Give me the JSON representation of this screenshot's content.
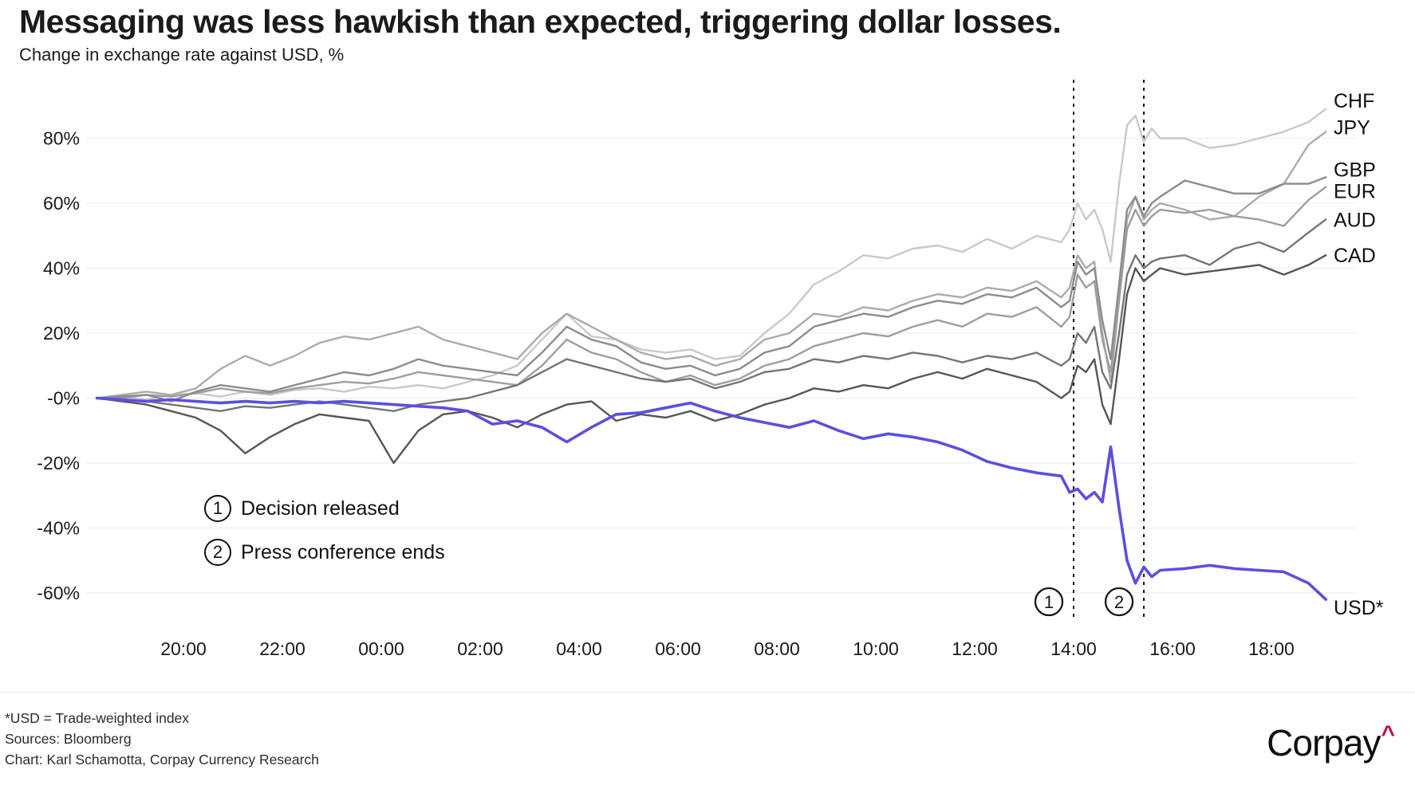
{
  "header": {
    "title": "Messaging was less hawkish than expected, triggering dollar losses.",
    "subtitle": "Change in exchange rate against USD, %"
  },
  "annotations": {
    "legend": [
      {
        "num": "1",
        "label": "Decision released"
      },
      {
        "num": "2",
        "label": "Press conference ends"
      }
    ],
    "events": [
      {
        "num": "1",
        "t": 38.0
      },
      {
        "num": "2",
        "t": 39.42
      }
    ]
  },
  "footer": {
    "note": "*USD = Trade-weighted index",
    "sources": "Sources: Bloomberg",
    "credit": "Chart: Karl Schamotta, Corpay Currency Research",
    "logo_text": "Corpay",
    "logo_caret": "^",
    "logo_caret_color": "#c01048"
  },
  "chart_data": {
    "type": "line",
    "title": "Messaging was less hawkish than expected, triggering dollar losses.",
    "subtitle": "Change in exchange rate against USD, %",
    "ylabel": "Change in exchange rate against USD, %",
    "grid": true,
    "legend_position": "right-line-ends",
    "x_axis": {
      "unit": "time",
      "range_hours": [
        18.15,
        43.15
      ],
      "ticks": [
        {
          "t": 20,
          "label": "20:00"
        },
        {
          "t": 22,
          "label": "22:00"
        },
        {
          "t": 24,
          "label": "00:00"
        },
        {
          "t": 26,
          "label": "02:00"
        },
        {
          "t": 28,
          "label": "04:00"
        },
        {
          "t": 30,
          "label": "06:00"
        },
        {
          "t": 32,
          "label": "08:00"
        },
        {
          "t": 34,
          "label": "10:00"
        },
        {
          "t": 36,
          "label": "12:00"
        },
        {
          "t": 38,
          "label": "14:00"
        },
        {
          "t": 40,
          "label": "16:00"
        },
        {
          "t": 42,
          "label": "18:00"
        }
      ]
    },
    "y_axis": {
      "unit": "%",
      "range": [
        -70,
        95
      ],
      "ticks": [
        {
          "v": 80,
          "label": "80%"
        },
        {
          "v": 60,
          "label": "60%"
        },
        {
          "v": 40,
          "label": "40%"
        },
        {
          "v": 20,
          "label": "20%"
        },
        {
          "v": 0,
          "label": "-0%"
        },
        {
          "v": -20,
          "label": "-20%"
        },
        {
          "v": -40,
          "label": "-40%"
        },
        {
          "v": -60,
          "label": "-60%"
        }
      ]
    },
    "x_hours": [
      18.25,
      18.75,
      19.25,
      19.75,
      20.25,
      20.75,
      21.25,
      21.75,
      22.25,
      22.75,
      23.25,
      23.75,
      24.25,
      24.75,
      25.25,
      25.75,
      26.25,
      26.75,
      27.25,
      27.75,
      28.25,
      28.75,
      29.25,
      29.75,
      30.25,
      30.75,
      31.25,
      31.75,
      32.25,
      32.75,
      33.25,
      33.75,
      34.25,
      34.75,
      35.25,
      35.75,
      36.25,
      36.75,
      37.25,
      37.75,
      37.92,
      38.08,
      38.25,
      38.42,
      38.58,
      38.75,
      38.92,
      39.08,
      39.25,
      39.42,
      39.58,
      39.75,
      40.25,
      40.75,
      41.25,
      41.75,
      42.25,
      42.75,
      43.1
    ],
    "series": [
      {
        "name": "CHF",
        "color": "#c9c9c9",
        "width": 2.4,
        "values": [
          0,
          0.5,
          -0.5,
          1,
          1.5,
          0.5,
          2,
          1,
          2.5,
          3,
          2,
          3.5,
          3,
          4,
          3,
          5,
          7,
          10,
          18,
          26,
          19,
          18,
          15,
          14,
          15,
          12,
          13,
          20,
          26,
          35,
          39,
          44,
          43,
          46,
          47,
          45,
          49,
          46,
          50,
          48,
          52,
          60,
          55,
          58,
          52,
          42,
          66,
          84,
          87,
          79,
          83,
          80,
          80,
          77,
          78,
          80,
          82,
          85,
          89
        ]
      },
      {
        "name": "JPY",
        "color": "#ababab",
        "width": 2.4,
        "values": [
          0,
          1,
          2,
          1,
          3,
          9,
          13,
          10,
          13,
          17,
          19,
          18,
          20,
          22,
          18,
          16,
          14,
          12,
          20,
          26,
          22,
          18,
          14,
          12,
          13,
          10,
          12,
          18,
          20,
          26,
          25,
          28,
          27,
          30,
          32,
          31,
          34,
          33,
          36,
          31,
          34,
          44,
          40,
          42,
          20,
          5,
          30,
          55,
          62,
          55,
          58,
          60,
          58,
          55,
          56,
          62,
          66,
          78,
          82
        ]
      },
      {
        "name": "EUR",
        "color": "#9e9e9e",
        "width": 2.4,
        "values": [
          0,
          0,
          1,
          0.5,
          1.5,
          3,
          2,
          1.5,
          3,
          4,
          5,
          4.5,
          6,
          8,
          7,
          6,
          5,
          4,
          10,
          18,
          14,
          12,
          8,
          5,
          7,
          4,
          6,
          10,
          12,
          16,
          18,
          20,
          19,
          22,
          24,
          22,
          26,
          25,
          28,
          22,
          25,
          38,
          34,
          36,
          18,
          8,
          30,
          52,
          58,
          53,
          56,
          58,
          57,
          58,
          56,
          55,
          53,
          61,
          65
        ]
      },
      {
        "name": "GBP",
        "color": "#8c8c8c",
        "width": 2.4,
        "values": [
          0,
          0.5,
          1,
          -1,
          2,
          4,
          3,
          2,
          4,
          6,
          8,
          7,
          9,
          12,
          10,
          9,
          8,
          7,
          14,
          22,
          18,
          16,
          11,
          9,
          10,
          7,
          9,
          14,
          16,
          22,
          24,
          26,
          25,
          28,
          30,
          29,
          32,
          31,
          34,
          28,
          30,
          42,
          38,
          40,
          24,
          12,
          35,
          58,
          62,
          56,
          60,
          62,
          67,
          65,
          63,
          63,
          66,
          66,
          68
        ]
      },
      {
        "name": "AUD",
        "color": "#757575",
        "width": 2.4,
        "values": [
          0,
          -0.5,
          -1,
          -2,
          -3,
          -4,
          -2.5,
          -3,
          -2,
          -1,
          -2,
          -3,
          -4,
          -2,
          -1,
          0,
          2,
          4,
          8,
          12,
          10,
          8,
          6,
          5,
          6,
          3,
          5,
          8,
          9,
          12,
          11,
          13,
          12,
          14,
          13,
          11,
          13,
          12,
          14,
          10,
          12,
          20,
          17,
          22,
          8,
          3,
          20,
          38,
          44,
          40,
          42,
          43,
          44,
          41,
          46,
          48,
          45,
          51,
          55
        ]
      },
      {
        "name": "CAD",
        "color": "#565656",
        "width": 2.4,
        "values": [
          0,
          -1,
          -2,
          -4,
          -6,
          -10,
          -17,
          -12,
          -8,
          -5,
          -6,
          -7,
          -20,
          -10,
          -5,
          -4,
          -6,
          -9,
          -5,
          -2,
          -1,
          -7,
          -5,
          -6,
          -4,
          -7,
          -5,
          -2,
          0,
          3,
          2,
          4,
          3,
          6,
          8,
          6,
          9,
          7,
          5,
          0,
          2,
          10,
          8,
          12,
          -2,
          -8,
          12,
          32,
          40,
          36,
          38,
          40,
          38,
          39,
          40,
          41,
          38,
          41,
          44
        ]
      },
      {
        "name": "USD*",
        "color": "#5b4fe0",
        "width": 3.6,
        "values": [
          0,
          -0.5,
          -1,
          -0.5,
          -1,
          -1.5,
          -1,
          -1.5,
          -1,
          -1.5,
          -1,
          -1.5,
          -2,
          -2.5,
          -3,
          -4,
          -8,
          -7,
          -9,
          -13.5,
          -9,
          -5,
          -4.5,
          -3,
          -1.5,
          -4,
          -6,
          -7.5,
          -9,
          -7,
          -10,
          -12.5,
          -11,
          -12,
          -13.5,
          -16,
          -19.5,
          -21.5,
          -23,
          -24,
          -29,
          -28,
          -31,
          -29,
          -32,
          -15,
          -34,
          -50,
          -57,
          -52,
          -55,
          -53,
          -52.5,
          -51.5,
          -52.5,
          -53,
          -53.5,
          -57,
          -62
        ]
      }
    ]
  }
}
